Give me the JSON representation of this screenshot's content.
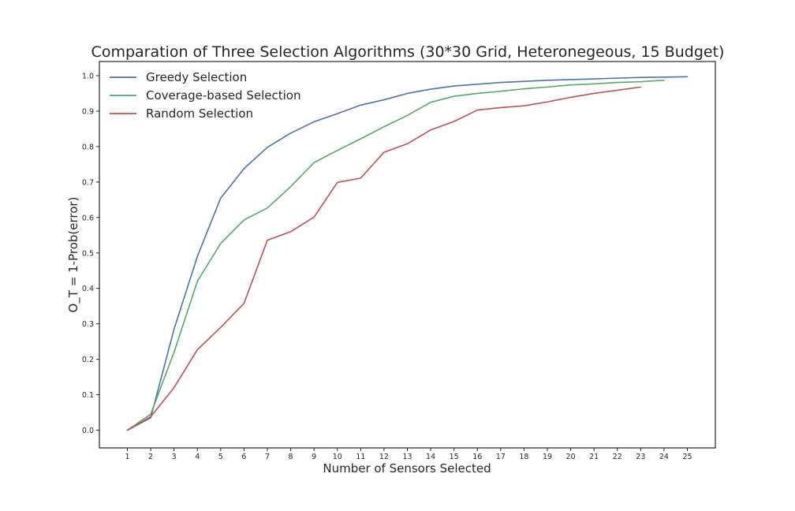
{
  "chart_data": {
    "type": "line",
    "title": "Comparation of Three Selection Algorithms (30*30 Grid, Heteronegeous, 15 Budget)",
    "xlabel": "Number of Sensors Selected",
    "ylabel": "O_T = 1-Prob(error)",
    "xlim": [
      -0.2,
      26.2
    ],
    "ylim": [
      -0.05,
      1.04
    ],
    "xticks": [
      1,
      2,
      3,
      4,
      5,
      6,
      7,
      8,
      9,
      10,
      11,
      12,
      13,
      14,
      15,
      16,
      17,
      18,
      19,
      20,
      21,
      22,
      23,
      24,
      25
    ],
    "yticks": [
      0.0,
      0.1,
      0.2,
      0.3,
      0.4,
      0.5,
      0.6,
      0.7,
      0.8,
      0.9,
      1.0
    ],
    "ytick_labels": [
      "0.0",
      "0.1",
      "0.2",
      "0.3",
      "0.4",
      "0.5",
      "0.6",
      "0.7",
      "0.8",
      "0.9",
      "1.0"
    ],
    "grid": false,
    "legend_position": "top-left",
    "series": [
      {
        "name": "Greedy Selection",
        "color": "#4c72b0",
        "x": [
          1,
          2,
          3,
          4,
          5,
          6,
          7,
          8,
          9,
          10,
          11,
          12,
          13,
          14,
          15,
          16,
          17,
          18,
          19,
          20,
          21,
          22,
          23,
          24,
          25
        ],
        "y": [
          0.0,
          0.035,
          0.285,
          0.49,
          0.655,
          0.738,
          0.798,
          0.838,
          0.87,
          0.893,
          0.917,
          0.932,
          0.95,
          0.962,
          0.971,
          0.976,
          0.981,
          0.984,
          0.987,
          0.989,
          0.991,
          0.993,
          0.995,
          0.996,
          0.997
        ]
      },
      {
        "name": "Coverage-based Selection",
        "color": "#55a868",
        "x": [
          1,
          2,
          3,
          4,
          5,
          6,
          7,
          8,
          9,
          10,
          11,
          12,
          13,
          14,
          15,
          16,
          17,
          18,
          19,
          20,
          21,
          22,
          23,
          24
        ],
        "y": [
          0.0,
          0.045,
          0.22,
          0.42,
          0.527,
          0.593,
          0.627,
          0.687,
          0.755,
          0.789,
          0.822,
          0.856,
          0.888,
          0.925,
          0.942,
          0.95,
          0.956,
          0.963,
          0.968,
          0.974,
          0.977,
          0.981,
          0.983,
          0.987
        ]
      },
      {
        "name": "Random Selection",
        "color": "#c44e52",
        "x": [
          1,
          2,
          3,
          4,
          5,
          6,
          7,
          8,
          9,
          10,
          11,
          12,
          13,
          14,
          15,
          16,
          17,
          18,
          19,
          20,
          21,
          22,
          23
        ],
        "y": [
          0.0,
          0.038,
          0.12,
          0.227,
          0.29,
          0.358,
          0.536,
          0.56,
          0.601,
          0.699,
          0.711,
          0.784,
          0.808,
          0.847,
          0.871,
          0.903,
          0.91,
          0.915,
          0.926,
          0.939,
          0.95,
          0.959,
          0.968
        ]
      }
    ]
  }
}
